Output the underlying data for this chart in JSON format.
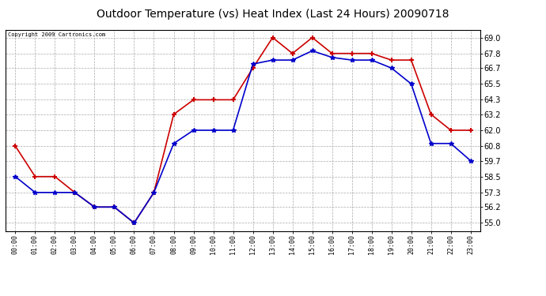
{
  "title": "Outdoor Temperature (vs) Heat Index (Last 24 Hours) 20090718",
  "copyright": "Copyright 2009 Cartronics.com",
  "hours": [
    "00:00",
    "01:00",
    "02:00",
    "03:00",
    "04:00",
    "05:00",
    "06:00",
    "07:00",
    "08:00",
    "09:00",
    "10:00",
    "11:00",
    "12:00",
    "13:00",
    "14:00",
    "15:00",
    "16:00",
    "17:00",
    "18:00",
    "19:00",
    "20:00",
    "21:00",
    "22:00",
    "23:00"
  ],
  "temp": [
    58.5,
    57.3,
    57.3,
    57.3,
    56.2,
    56.2,
    55.0,
    57.3,
    61.0,
    62.0,
    62.0,
    62.0,
    67.0,
    67.3,
    67.3,
    68.0,
    67.5,
    67.3,
    67.3,
    66.7,
    65.5,
    61.0,
    61.0,
    59.7
  ],
  "heat_index": [
    60.8,
    58.5,
    58.5,
    57.3,
    56.2,
    56.2,
    55.0,
    57.3,
    63.2,
    64.3,
    64.3,
    64.3,
    66.7,
    69.0,
    67.8,
    69.0,
    67.8,
    67.8,
    67.8,
    67.3,
    67.3,
    63.2,
    62.0,
    62.0
  ],
  "temp_color": "#0000cc",
  "heat_index_color": "#cc0000",
  "background_color": "#ffffff",
  "grid_color": "#aaaaaa",
  "y_ticks": [
    55.0,
    56.2,
    57.3,
    58.5,
    59.7,
    60.8,
    62.0,
    63.2,
    64.3,
    65.5,
    66.7,
    67.8,
    69.0
  ],
  "ylim": [
    54.4,
    69.6
  ],
  "title_fontsize": 10,
  "marker_size": 4,
  "line_width": 1.2
}
